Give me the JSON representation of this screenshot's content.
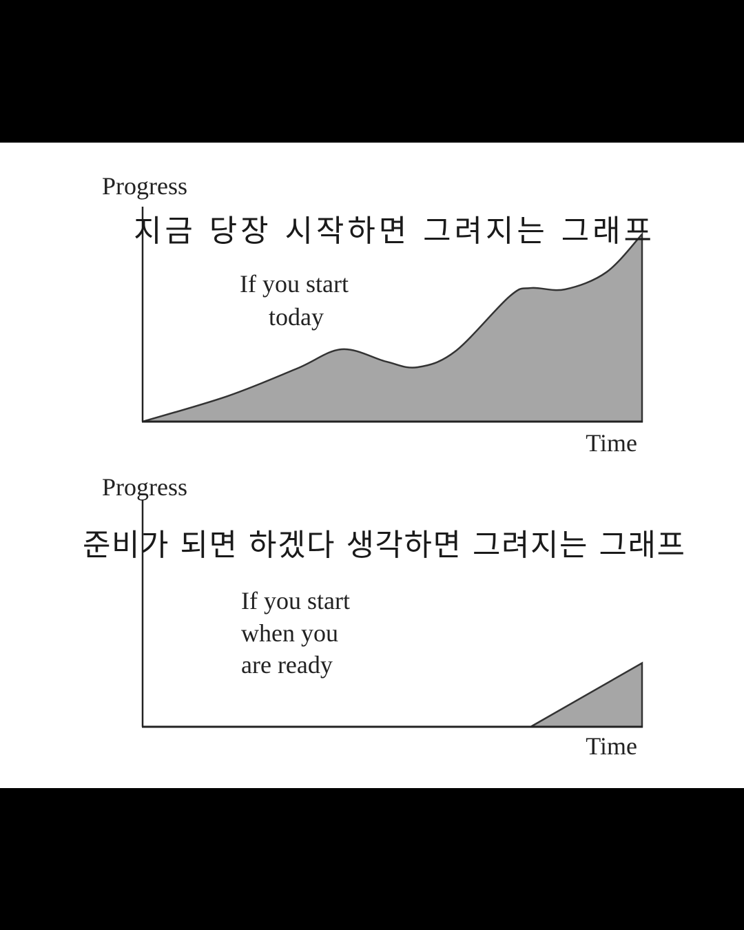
{
  "chart_data": [
    {
      "type": "area",
      "title": "지금 당장 시작하면 그려지는 그래프",
      "annotation": [
        "If you start",
        "today"
      ],
      "xlabel": "Time",
      "ylabel": "Progress",
      "xlim": [
        0,
        100
      ],
      "ylim": [
        0,
        100
      ],
      "grid": false,
      "fill_color": "#a6a6a6",
      "x": [
        0,
        17,
        30.9,
        39.9,
        48.8,
        55,
        62.6,
        73.5,
        77.7,
        84.6,
        92.9,
        100
      ],
      "y": [
        0,
        13.6,
        28.3,
        38.6,
        32,
        29,
        37.5,
        66.9,
        71.3,
        70.6,
        79.8,
        100
      ]
    },
    {
      "type": "area",
      "title": "준비가 되면 하겠다 생각하면 그려지는 그래프",
      "annotation": [
        "If you start",
        "when you",
        "are ready"
      ],
      "xlabel": "Time",
      "ylabel": "Progress",
      "xlim": [
        0,
        100
      ],
      "ylim": [
        0,
        125
      ],
      "grid": false,
      "fill_color": "#a6a6a6",
      "x": [
        77.7,
        100
      ],
      "y": [
        0,
        34
      ]
    }
  ]
}
